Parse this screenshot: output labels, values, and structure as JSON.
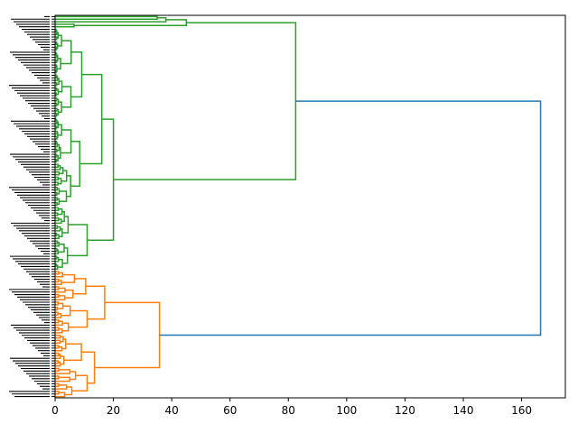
{
  "chart_data": {
    "type": "dendrogram",
    "orientation": "right",
    "title": "",
    "xlabel": "",
    "ylabel": "",
    "xlim": [
      0,
      175
    ],
    "x_ticks": [
      0,
      20,
      40,
      60,
      80,
      100,
      120,
      140,
      160
    ],
    "x_tick_labels": [
      "0",
      "20",
      "40",
      "60",
      "80",
      "100",
      "120",
      "140",
      "160"
    ],
    "leaf_count": 150,
    "leaf_labels_legible": false,
    "clusters": [
      {
        "name": "",
        "color": "#2ca02c",
        "leaf_count": 100,
        "merge_distance": 82.5
      },
      {
        "name": "",
        "color": "#ff7f0e",
        "leaf_count": 50,
        "merge_distance": 35.8
      }
    ],
    "root": {
      "color": "#1f77b4",
      "merge_distance": 166.5
    },
    "notable_merges": [
      {
        "cluster": "green",
        "distance": 45.0
      },
      {
        "cluster": "green",
        "distance": 38.0
      },
      {
        "cluster": "green",
        "distance": 35.0
      },
      {
        "cluster": "green",
        "distance": 20.0
      },
      {
        "cluster": "green",
        "distance": 16.0
      },
      {
        "cluster": "green",
        "distance": 14.0
      },
      {
        "cluster": "green",
        "distance": 13.5
      },
      {
        "cluster": "green",
        "distance": 11.0
      },
      {
        "cluster": "orange",
        "distance": 17.0
      },
      {
        "cluster": "orange",
        "distance": 13.5
      },
      {
        "cluster": "orange",
        "distance": 11.0
      },
      {
        "cluster": "orange",
        "distance": 10.5
      }
    ],
    "grid": false,
    "legend": "none"
  }
}
